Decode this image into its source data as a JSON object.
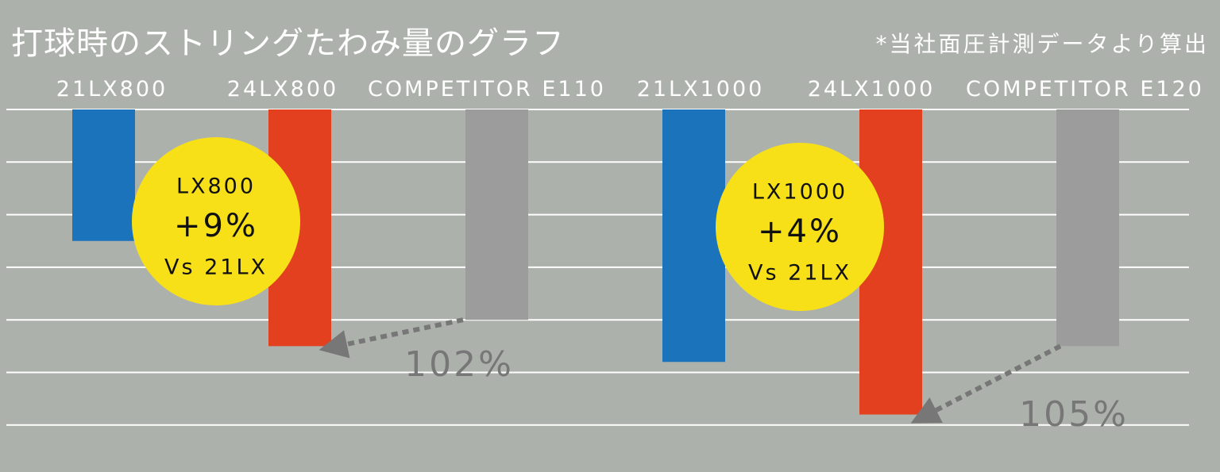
{
  "chart_data": {
    "type": "bar",
    "title": "打球時のストリングたわみ量のグラフ",
    "note": "*当社面圧計測データより算出",
    "categories": [
      "21LX800",
      "24LX800",
      "COMPETITOR E110",
      "21LX1000",
      "24LX1000",
      "COMPETITOR E120"
    ],
    "values": [
      2.5,
      4.5,
      4.0,
      4.8,
      5.8,
      4.5
    ],
    "orientation": "bars hang downward from top gridline",
    "ylim": [
      0,
      6
    ],
    "grid": true,
    "colors": [
      "#1a73bb",
      "#e2401f",
      "#9c9c9c",
      "#1a73bb",
      "#e2401f",
      "#9c9c9c"
    ],
    "callouts": [
      {
        "line1": "LX800",
        "line2": "+9%",
        "line3": "Vs 21LX",
        "color": "#f7e017"
      },
      {
        "line1": "LX1000",
        "line2": "+4%",
        "line3": "Vs 21LX",
        "color": "#f7e017"
      }
    ],
    "annotations": [
      {
        "text": "102%",
        "from": "COMPETITOR E110",
        "to": "24LX800"
      },
      {
        "text": "105%",
        "from": "COMPETITOR E120",
        "to": "24LX1000"
      }
    ]
  }
}
